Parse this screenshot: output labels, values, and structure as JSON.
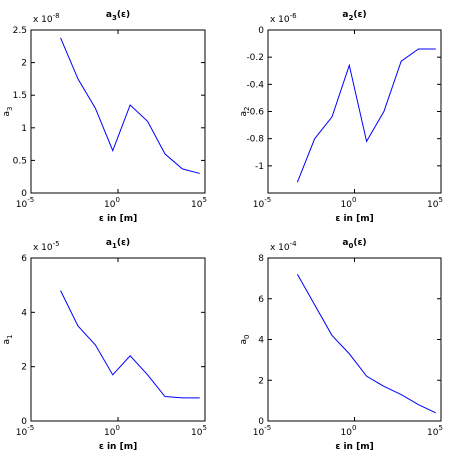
{
  "chart_data": [
    {
      "type": "line",
      "title": {
        "base": "a",
        "sub": "3",
        "tail": "(ε)"
      },
      "xlabel": "ε in [m]",
      "ylabel": {
        "base": "a",
        "sub": "3"
      },
      "xscale": "log",
      "xlim": [
        1e-05,
        100000
      ],
      "xticks": [
        {
          "value": 1e-05,
          "label": "10",
          "exp": "-5"
        },
        {
          "value": 1,
          "label": "10",
          "exp": "0"
        },
        {
          "value": 100000,
          "label": "10",
          "exp": "5"
        }
      ],
      "ylim": [
        0,
        2.5
      ],
      "yticks": [
        0,
        0.5,
        1,
        1.5,
        2,
        2.5
      ],
      "y_multiplier": {
        "base": "x 10",
        "exp": "-8"
      },
      "x": [
        0.0005,
        0.005,
        0.05,
        0.5,
        5,
        50,
        500,
        5000,
        50000
      ],
      "series": [
        {
          "color": "#0000ff",
          "values": [
            2.38,
            1.75,
            1.3,
            0.65,
            1.35,
            1.1,
            0.6,
            0.37,
            0.3
          ]
        }
      ]
    },
    {
      "type": "line",
      "title": {
        "base": "a",
        "sub": "2",
        "tail": "(ε)"
      },
      "xlabel": "ε in [m]",
      "ylabel": {
        "base": "a",
        "sub": "2"
      },
      "xscale": "log",
      "xlim": [
        1e-05,
        100000
      ],
      "xticks": [
        {
          "value": 1e-05,
          "label": "10",
          "exp": "-5"
        },
        {
          "value": 1,
          "label": "10",
          "exp": "0"
        },
        {
          "value": 100000,
          "label": "10",
          "exp": "5"
        }
      ],
      "ylim": [
        -1.2,
        0
      ],
      "yticks": [
        -1,
        -0.8,
        -0.6,
        -0.4,
        -0.2,
        0
      ],
      "y_multiplier": {
        "base": "x 10",
        "exp": "-6"
      },
      "x": [
        0.0005,
        0.005,
        0.05,
        0.5,
        5,
        50,
        500,
        5000,
        50000
      ],
      "series": [
        {
          "color": "#0000ff",
          "values": [
            -1.12,
            -0.8,
            -0.64,
            -0.26,
            -0.82,
            -0.6,
            -0.23,
            -0.14,
            -0.14
          ]
        }
      ]
    },
    {
      "type": "line",
      "title": {
        "base": "a",
        "sub": "1",
        "tail": "(ε)"
      },
      "xlabel": "ε in [m]",
      "ylabel": {
        "base": "a",
        "sub": "1"
      },
      "xscale": "log",
      "xlim": [
        1e-05,
        100000
      ],
      "xticks": [
        {
          "value": 1e-05,
          "label": "10",
          "exp": "-5"
        },
        {
          "value": 1,
          "label": "10",
          "exp": "0"
        },
        {
          "value": 100000,
          "label": "10",
          "exp": "5"
        }
      ],
      "ylim": [
        0,
        6
      ],
      "yticks": [
        0,
        2,
        4,
        6
      ],
      "y_multiplier": {
        "base": "x 10",
        "exp": "-5"
      },
      "x": [
        0.0005,
        0.005,
        0.05,
        0.5,
        5,
        50,
        500,
        5000,
        50000
      ],
      "series": [
        {
          "color": "#0000ff",
          "values": [
            4.8,
            3.5,
            2.8,
            1.7,
            2.4,
            1.7,
            0.9,
            0.85,
            0.85
          ]
        }
      ]
    },
    {
      "type": "line",
      "title": {
        "base": "a",
        "sub": "0",
        "tail": "(ε)"
      },
      "xlabel": "ε in [m]",
      "ylabel": {
        "base": "a",
        "sub": "0"
      },
      "xscale": "log",
      "xlim": [
        1e-05,
        100000
      ],
      "xticks": [
        {
          "value": 1e-05,
          "label": "10",
          "exp": "-5"
        },
        {
          "value": 1,
          "label": "10",
          "exp": "0"
        },
        {
          "value": 100000,
          "label": "10",
          "exp": "5"
        }
      ],
      "ylim": [
        0,
        8
      ],
      "yticks": [
        0,
        2,
        4,
        6,
        8
      ],
      "y_multiplier": {
        "base": "x 10",
        "exp": "-4"
      },
      "x": [
        0.0005,
        0.005,
        0.05,
        0.5,
        5,
        50,
        500,
        5000,
        50000
      ],
      "series": [
        {
          "color": "#0000ff",
          "values": [
            7.2,
            5.7,
            4.2,
            3.3,
            2.2,
            1.7,
            1.3,
            0.8,
            0.4
          ]
        }
      ]
    }
  ]
}
